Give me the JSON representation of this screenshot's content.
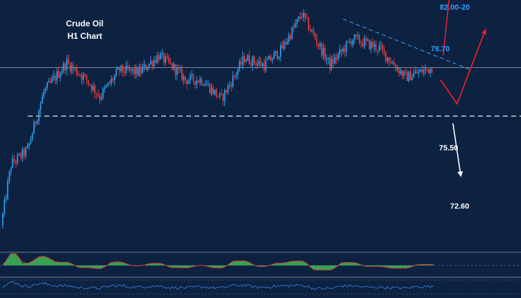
{
  "header": {
    "title_line1": "Crude Oil",
    "title_line2": "H1 Chart"
  },
  "levels": {
    "target_upper": "82.00-20",
    "resistance": "78.70",
    "support": "75.50",
    "target_lower": "72.60"
  },
  "colors": {
    "background": "#0c2240",
    "bullish_candle": "#2f9be8",
    "bearish_candle": "#e53939",
    "trendline": "#3a8fe0",
    "scenario_arrows": "#e0202c",
    "down_arrow": "#ffffff",
    "support_line": "#ffffff",
    "oscillator_fill": "#3fae55",
    "oscillator_line": "#d83a3a",
    "rsi_line": "#2f74d0"
  },
  "chart_data": {
    "type": "candlestick",
    "symbol": "Crude Oil",
    "timeframe": "H1",
    "price_path_waypoints": [
      {
        "bar": 0,
        "price": 71.0
      },
      {
        "bar": 6,
        "price": 73.5
      },
      {
        "bar": 16,
        "price": 74.1
      },
      {
        "bar": 26,
        "price": 76.5
      },
      {
        "bar": 40,
        "price": 77.7
      },
      {
        "bar": 52,
        "price": 77.0
      },
      {
        "bar": 60,
        "price": 76.3
      },
      {
        "bar": 72,
        "price": 77.4
      },
      {
        "bar": 84,
        "price": 77.3
      },
      {
        "bar": 96,
        "price": 78.0
      },
      {
        "bar": 108,
        "price": 77.3
      },
      {
        "bar": 112,
        "price": 77.0
      },
      {
        "bar": 122,
        "price": 77.0
      },
      {
        "bar": 134,
        "price": 76.2
      },
      {
        "bar": 148,
        "price": 77.9
      },
      {
        "bar": 160,
        "price": 77.6
      },
      {
        "bar": 170,
        "price": 78.2
      },
      {
        "bar": 183,
        "price": 79.7
      },
      {
        "bar": 200,
        "price": 77.6
      },
      {
        "bar": 214,
        "price": 78.7
      },
      {
        "bar": 230,
        "price": 78.3
      },
      {
        "bar": 246,
        "price": 77.1
      },
      {
        "bar": 262,
        "price": 77.5
      }
    ],
    "horizontal_levels": [
      {
        "price": 77.5,
        "style": "solid"
      },
      {
        "price": 75.5,
        "style": "dashed"
      }
    ],
    "trendline": {
      "from": {
        "bar": 207,
        "price": 79.5
      },
      "to": {
        "bar": 285,
        "price": 77.4
      },
      "style": "dashed"
    },
    "scenarios": [
      {
        "direction": "up",
        "from_price": 78.0,
        "to_price": 81.3,
        "color": "red"
      },
      {
        "direction": "down_then_up",
        "low_price": 76.0,
        "to_price": 79.0,
        "color": "red"
      },
      {
        "direction": "down",
        "from_price": 75.2,
        "to_price": 73.1,
        "color": "white"
      }
    ],
    "y_range": [
      70.0,
      80.0
    ],
    "bar_count": 262,
    "grid": false,
    "legend": "none",
    "indicators": [
      "oscillator_histogram",
      "rsi_line"
    ]
  }
}
